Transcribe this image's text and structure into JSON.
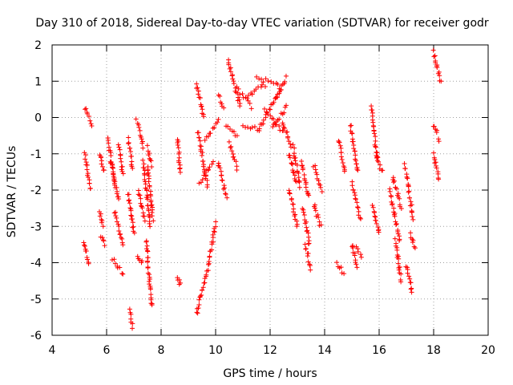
{
  "chart_data": {
    "type": "scatter",
    "title": "Day 310 of 2018, Sidereal Day-to-day VTEC variation (SDTVAR) for receiver godr",
    "xlabel": "GPS time / hours",
    "ylabel": "SDTVAR / TECUs",
    "xlim": [
      4,
      20
    ],
    "ylim": [
      -6,
      2
    ],
    "xticks": [
      4,
      6,
      8,
      10,
      12,
      14,
      16,
      18,
      20
    ],
    "yticks": [
      -6,
      -5,
      -4,
      -3,
      -2,
      -1,
      0,
      1,
      2
    ],
    "grid": true,
    "marker": "+",
    "color": "#ff0000",
    "segments": [
      {
        "x": [
          5.2,
          5.45
        ],
        "y": [
          0.25,
          -0.2
        ]
      },
      {
        "x": [
          5.2,
          5.4
        ],
        "y": [
          -1.0,
          -2.0
        ]
      },
      {
        "x": [
          5.15,
          5.35
        ],
        "y": [
          -3.4,
          -4.0
        ]
      },
      {
        "x": [
          5.75,
          5.9
        ],
        "y": [
          -1.0,
          -1.5
        ]
      },
      {
        "x": [
          5.75,
          5.85
        ],
        "y": [
          -2.6,
          -3.0
        ]
      },
      {
        "x": [
          5.8,
          5.95
        ],
        "y": [
          -3.3,
          -3.5
        ]
      },
      {
        "x": [
          6.05,
          6.3
        ],
        "y": [
          -0.6,
          -1.8
        ]
      },
      {
        "x": [
          6.15,
          6.45
        ],
        "y": [
          -1.2,
          -2.3
        ]
      },
      {
        "x": [
          6.3,
          6.6
        ],
        "y": [
          -2.6,
          -3.5
        ]
      },
      {
        "x": [
          6.2,
          6.6
        ],
        "y": [
          -3.9,
          -4.3
        ]
      },
      {
        "x": [
          6.45,
          6.6
        ],
        "y": [
          -0.8,
          -1.6
        ]
      },
      {
        "x": [
          6.8,
          6.95
        ],
        "y": [
          -0.6,
          -1.4
        ]
      },
      {
        "x": [
          6.8,
          7.0
        ],
        "y": [
          -2.1,
          -3.2
        ]
      },
      {
        "x": [
          6.85,
          6.95
        ],
        "y": [
          -5.3,
          -5.75
        ]
      },
      {
        "x": [
          7.1,
          7.35
        ],
        "y": [
          -0.1,
          -0.8
        ]
      },
      {
        "x": [
          7.15,
          7.4
        ],
        "y": [
          -2.0,
          -2.8
        ]
      },
      {
        "x": [
          7.15,
          7.3
        ],
        "y": [
          -3.8,
          -4.0
        ]
      },
      {
        "x": [
          7.35,
          7.6
        ],
        "y": [
          -1.2,
          -3.0
        ]
      },
      {
        "x": [
          7.45,
          7.65
        ],
        "y": [
          -3.4,
          -5.2
        ]
      },
      {
        "x": [
          7.5,
          7.65
        ],
        "y": [
          -0.8,
          -1.3
        ]
      },
      {
        "x": [
          7.5,
          7.7
        ],
        "y": [
          -1.3,
          -2.8
        ]
      },
      {
        "x": [
          8.6,
          8.7
        ],
        "y": [
          -0.6,
          -1.5
        ]
      },
      {
        "x": [
          8.6,
          8.7
        ],
        "y": [
          -4.4,
          -4.6
        ]
      },
      {
        "x": [
          9.3,
          9.55
        ],
        "y": [
          0.9,
          0.0
        ]
      },
      {
        "x": [
          9.35,
          9.7
        ],
        "y": [
          -0.4,
          -1.9
        ]
      },
      {
        "x": [
          9.4,
          9.9
        ],
        "y": [
          -1.8,
          -1.2
        ]
      },
      {
        "x": [
          9.6,
          10.1
        ],
        "y": [
          -0.6,
          -0.1
        ]
      },
      {
        "x": [
          9.3,
          9.8
        ],
        "y": [
          -5.4,
          -3.9
        ]
      },
      {
        "x": [
          9.8,
          10.0
        ],
        "y": [
          -3.8,
          -2.9
        ]
      },
      {
        "x": [
          10.1,
          10.3
        ],
        "y": [
          0.6,
          0.3
        ]
      },
      {
        "x": [
          10.1,
          10.4
        ],
        "y": [
          -1.2,
          -2.2
        ]
      },
      {
        "x": [
          10.45,
          10.9
        ],
        "y": [
          1.6,
          0.3
        ]
      },
      {
        "x": [
          10.5,
          10.8
        ],
        "y": [
          -0.7,
          -1.4
        ]
      },
      {
        "x": [
          10.4,
          10.8
        ],
        "y": [
          -0.2,
          -0.5
        ]
      },
      {
        "x": [
          10.8,
          11.3
        ],
        "y": [
          0.8,
          0.3
        ]
      },
      {
        "x": [
          11.0,
          11.6
        ],
        "y": [
          -0.2,
          -0.35
        ]
      },
      {
        "x": [
          11.2,
          11.8
        ],
        "y": [
          0.6,
          0.9
        ]
      },
      {
        "x": [
          11.5,
          12.3
        ],
        "y": [
          1.1,
          0.9
        ]
      },
      {
        "x": [
          11.6,
          12.4
        ],
        "y": [
          -0.3,
          0.8
        ]
      },
      {
        "x": [
          11.8,
          12.5
        ],
        "y": [
          0.2,
          -0.4
        ]
      },
      {
        "x": [
          12.2,
          12.6
        ],
        "y": [
          0.5,
          1.1
        ]
      },
      {
        "x": [
          12.1,
          12.6
        ],
        "y": [
          -0.3,
          0.3
        ]
      },
      {
        "x": [
          12.45,
          12.75
        ],
        "y": [
          -0.1,
          -0.8
        ]
      },
      {
        "x": [
          12.7,
          12.95
        ],
        "y": [
          -1.0,
          -1.8
        ]
      },
      {
        "x": [
          12.7,
          13.0
        ],
        "y": [
          -2.0,
          -3.0
        ]
      },
      {
        "x": [
          12.85,
          13.1
        ],
        "y": [
          -0.8,
          -1.9
        ]
      },
      {
        "x": [
          13.15,
          13.4
        ],
        "y": [
          -1.2,
          -2.2
        ]
      },
      {
        "x": [
          13.2,
          13.45
        ],
        "y": [
          -2.5,
          -3.5
        ]
      },
      {
        "x": [
          13.3,
          13.5
        ],
        "y": [
          -3.5,
          -4.2
        ]
      },
      {
        "x": [
          13.6,
          13.9
        ],
        "y": [
          -1.3,
          -2.0
        ]
      },
      {
        "x": [
          13.6,
          13.85
        ],
        "y": [
          -2.4,
          -3.0
        ]
      },
      {
        "x": [
          14.5,
          14.75
        ],
        "y": [
          -0.6,
          -1.5
        ]
      },
      {
        "x": [
          14.45,
          14.7
        ],
        "y": [
          -4.0,
          -4.3
        ]
      },
      {
        "x": [
          14.95,
          15.2
        ],
        "y": [
          -0.2,
          -1.5
        ]
      },
      {
        "x": [
          15.0,
          15.3
        ],
        "y": [
          -1.8,
          -2.8
        ]
      },
      {
        "x": [
          15.0,
          15.2
        ],
        "y": [
          -3.5,
          -4.1
        ]
      },
      {
        "x": [
          15.15,
          15.35
        ],
        "y": [
          -3.6,
          -3.8
        ]
      },
      {
        "x": [
          15.7,
          15.95
        ],
        "y": [
          0.3,
          -1.2
        ]
      },
      {
        "x": [
          15.75,
          16.0
        ],
        "y": [
          -2.4,
          -3.2
        ]
      },
      {
        "x": [
          15.9,
          16.1
        ],
        "y": [
          -1.0,
          -1.5
        ]
      },
      {
        "x": [
          16.4,
          16.75
        ],
        "y": [
          -2.0,
          -3.4
        ]
      },
      {
        "x": [
          16.5,
          16.8
        ],
        "y": [
          -1.6,
          -2.5
        ]
      },
      {
        "x": [
          16.6,
          16.8
        ],
        "y": [
          -3.4,
          -4.5
        ]
      },
      {
        "x": [
          16.95,
          17.25
        ],
        "y": [
          -1.3,
          -2.8
        ]
      },
      {
        "x": [
          17.0,
          17.2
        ],
        "y": [
          -4.1,
          -4.8
        ]
      },
      {
        "x": [
          17.15,
          17.3
        ],
        "y": [
          -3.2,
          -3.6
        ]
      },
      {
        "x": [
          18.0,
          18.25
        ],
        "y": [
          1.8,
          1.0
        ]
      },
      {
        "x": [
          18.0,
          18.2
        ],
        "y": [
          -0.2,
          -0.6
        ]
      },
      {
        "x": [
          18.0,
          18.2
        ],
        "y": [
          -1.0,
          -1.7
        ]
      }
    ]
  }
}
